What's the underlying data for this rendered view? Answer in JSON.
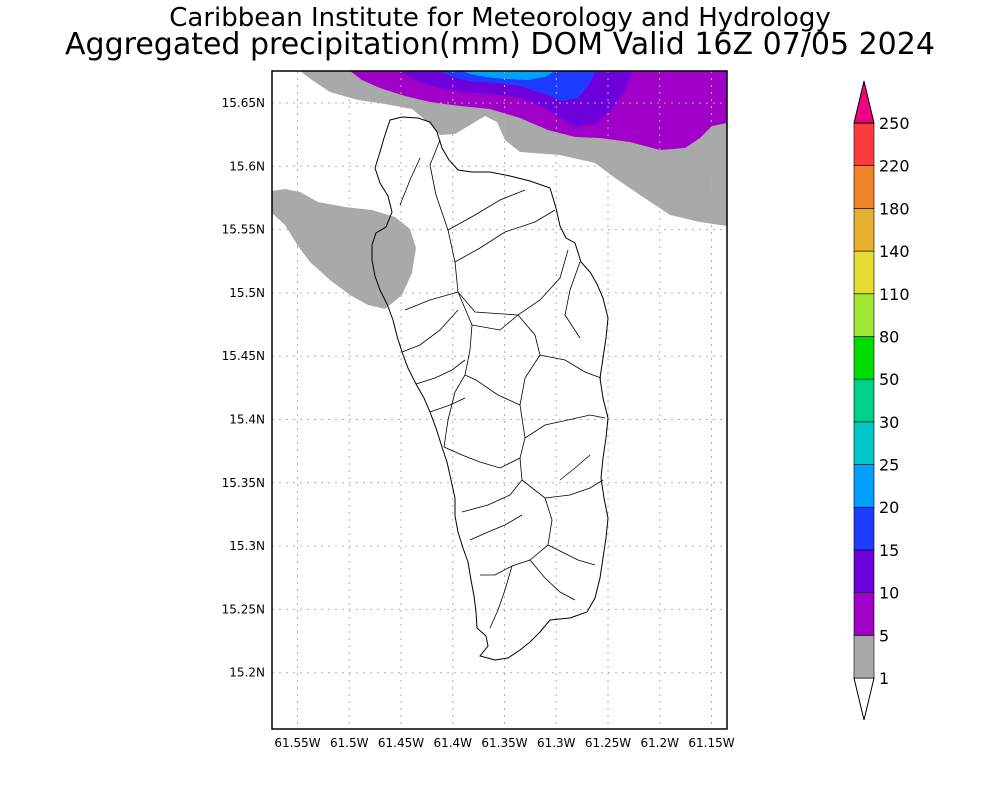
{
  "header": {
    "title_line1": "Caribbean Institute for Meteorology and Hydrology",
    "title_line2": "Aggregated precipitation(mm) DOM Valid 16Z 07/05 2024"
  },
  "map": {
    "lat_labels": [
      "15.65N",
      "15.6N",
      "15.55N",
      "15.5N",
      "15.45N",
      "15.4N",
      "15.35N",
      "15.3N",
      "15.25N",
      "15.2N"
    ],
    "lon_labels": [
      "61.55W",
      "61.5W",
      "61.45W",
      "61.4W",
      "61.35W",
      "61.3W",
      "61.25W",
      "61.2W",
      "61.15W"
    ],
    "gridlines": true,
    "land_outline_color": "#000000",
    "region": "Dominica"
  },
  "legend": {
    "labels": [
      "1",
      "5",
      "10",
      "15",
      "20",
      "25",
      "30",
      "50",
      "80",
      "110",
      "140",
      "180",
      "220",
      "250"
    ],
    "colors": [
      "#a9a9a9",
      "#a000c8",
      "#6e00dc",
      "#1e3cff",
      "#00a0ff",
      "#00c8c8",
      "#00d28c",
      "#00dc00",
      "#a0e632",
      "#e6dc32",
      "#e6af2d",
      "#f08228",
      "#fa3c3c",
      "#f00082"
    ]
  }
}
